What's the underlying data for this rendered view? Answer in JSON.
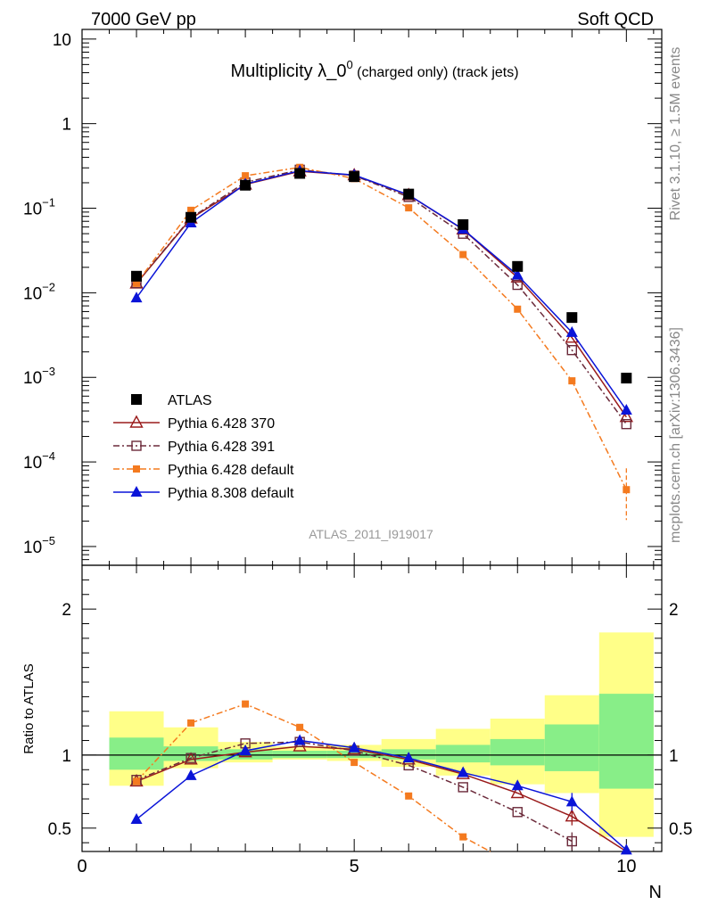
{
  "header": {
    "energy_label": "7000 GeV pp",
    "process_label": "Soft QCD",
    "side_label_top": "Rivet 3.1.10, ≥ 1.5M events",
    "side_label_bottom": "mcplots.cern.ch [arXiv:1306.3436]",
    "analysis_id": "ATLAS_2011_I919017"
  },
  "chart_data": [
    {
      "type": "scatter",
      "panel": "main",
      "title": {
        "main": "Multiplicity λ_0",
        "sup": "0",
        "suffix": " (charged only) (track jets)"
      },
      "xlabel": "N",
      "ylabel": "",
      "yscale": "log",
      "xlim": [
        0,
        10.65
      ],
      "ylim": [
        6e-06,
        13
      ],
      "ytick_labels": [
        {
          "value": 10,
          "base": "10",
          "exp": ""
        },
        {
          "value": 1,
          "base": "1",
          "exp": ""
        },
        {
          "value": 0.1,
          "base": "10",
          "exp": "−1"
        },
        {
          "value": 0.01,
          "base": "10",
          "exp": "−2"
        },
        {
          "value": 0.001,
          "base": "10",
          "exp": "−3"
        },
        {
          "value": 0.0001,
          "base": "10",
          "exp": "−4"
        },
        {
          "value": 1e-05,
          "base": "10",
          "exp": "−5"
        }
      ],
      "legend_position": "bottom-left",
      "series": [
        {
          "name": "ATLAS",
          "color": "#000000",
          "marker": "square-filled",
          "line": "none",
          "x": [
            1,
            2,
            3,
            4,
            5,
            6,
            7,
            8,
            9,
            10
          ],
          "y": [
            0.0157,
            0.078,
            0.187,
            0.258,
            0.236,
            0.147,
            0.064,
            0.0205,
            0.0051,
            0.00098
          ]
        },
        {
          "name": "Pythia 6.428 370",
          "color": "#9a1b1b",
          "marker": "triangle-open",
          "line": "solid",
          "x": [
            1,
            2,
            3,
            4,
            5,
            6,
            7,
            8,
            9,
            10
          ],
          "y": [
            0.0129,
            0.0755,
            0.191,
            0.273,
            0.245,
            0.143,
            0.0561,
            0.0152,
            0.00295,
            0.00034
          ]
        },
        {
          "name": "Pythia 6.428 391",
          "color": "#6b2a3a",
          "marker": "square-open",
          "line": "dashdot",
          "x": [
            1,
            2,
            3,
            4,
            5,
            6,
            7,
            8,
            9,
            10
          ],
          "y": [
            0.013,
            0.077,
            0.202,
            0.285,
            0.243,
            0.136,
            0.0499,
            0.0124,
            0.0021,
            0.00028
          ]
        },
        {
          "name": "Pythia 6.428 default",
          "color": "#f47a1f",
          "marker": "square-filled-small",
          "line": "dashdot",
          "x": [
            1,
            2,
            3,
            4,
            5,
            6,
            7,
            8,
            9,
            10
          ],
          "y": [
            0.0129,
            0.0945,
            0.242,
            0.304,
            0.224,
            0.101,
            0.0283,
            0.0064,
            0.00091,
            4.7e-05
          ]
        },
        {
          "name": "Pythia 8.308 default",
          "color": "#0a14d8",
          "marker": "triangle-filled",
          "line": "solid",
          "x": [
            1,
            2,
            3,
            4,
            5,
            6,
            7,
            8,
            9,
            10
          ],
          "y": [
            0.0087,
            0.067,
            0.193,
            0.277,
            0.247,
            0.144,
            0.0564,
            0.0162,
            0.0034,
            0.00041
          ]
        }
      ]
    },
    {
      "type": "line",
      "panel": "ratio",
      "xlabel": "N",
      "ylabel": "Ratio to ATLAS",
      "xlim": [
        0,
        10.65
      ],
      "ylim": [
        0.34,
        2.3
      ],
      "xtick_labels": [
        "0",
        "5",
        "10"
      ],
      "ytick_labels": [
        "0.5",
        "1",
        "2"
      ],
      "bands": {
        "bins": [
          [
            0.5,
            1.5
          ],
          [
            1.5,
            2.5
          ],
          [
            2.5,
            3.5
          ],
          [
            3.5,
            4.5
          ],
          [
            4.5,
            5.5
          ],
          [
            5.5,
            6.5
          ],
          [
            6.5,
            7.5
          ],
          [
            7.5,
            8.5
          ],
          [
            8.5,
            9.5
          ],
          [
            9.5,
            10.5
          ]
        ],
        "stat_low": [
          0.9,
          0.96,
          0.97,
          0.98,
          0.98,
          0.97,
          0.95,
          0.93,
          0.89,
          0.77
        ],
        "stat_high": [
          1.12,
          1.06,
          1.04,
          1.03,
          1.03,
          1.04,
          1.07,
          1.11,
          1.21,
          1.42
        ],
        "total_low": [
          0.79,
          0.91,
          0.95,
          0.97,
          0.96,
          0.92,
          0.86,
          0.8,
          0.74,
          0.44
        ],
        "total_high": [
          1.3,
          1.19,
          1.09,
          1.06,
          1.07,
          1.11,
          1.18,
          1.25,
          1.41,
          1.84
        ]
      },
      "series": [
        {
          "name": "Pythia 6.428 370",
          "color": "#9a1b1b",
          "marker": "triangle-open",
          "line": "solid",
          "x": [
            1,
            2,
            3,
            4,
            5,
            6,
            7,
            8,
            9,
            10
          ],
          "y": [
            0.82,
            0.97,
            1.02,
            1.06,
            1.04,
            0.97,
            0.87,
            0.74,
            0.58,
            0.34
          ]
        },
        {
          "name": "Pythia 6.428 391",
          "color": "#6b2a3a",
          "marker": "square-open",
          "line": "dashdot",
          "x": [
            1,
            2,
            3,
            4,
            5,
            6,
            7,
            8,
            9
          ],
          "y": [
            0.83,
            0.98,
            1.08,
            1.09,
            1.03,
            0.93,
            0.78,
            0.61,
            0.41
          ]
        },
        {
          "name": "Pythia 6.428 default",
          "color": "#f47a1f",
          "marker": "square-filled-small",
          "line": "dashdot",
          "x": [
            1,
            2,
            3,
            4,
            5,
            6,
            7,
            7.5
          ],
          "y": [
            0.82,
            1.22,
            1.35,
            1.19,
            0.95,
            0.72,
            0.44,
            0.34
          ]
        },
        {
          "name": "Pythia 8.308 default",
          "color": "#0a14d8",
          "marker": "triangle-filled",
          "line": "solid",
          "x": [
            1,
            2,
            3,
            4,
            5,
            6,
            7,
            8,
            9,
            10
          ],
          "y": [
            0.56,
            0.86,
            1.03,
            1.1,
            1.05,
            0.98,
            0.88,
            0.79,
            0.68,
            0.35
          ]
        }
      ]
    }
  ]
}
